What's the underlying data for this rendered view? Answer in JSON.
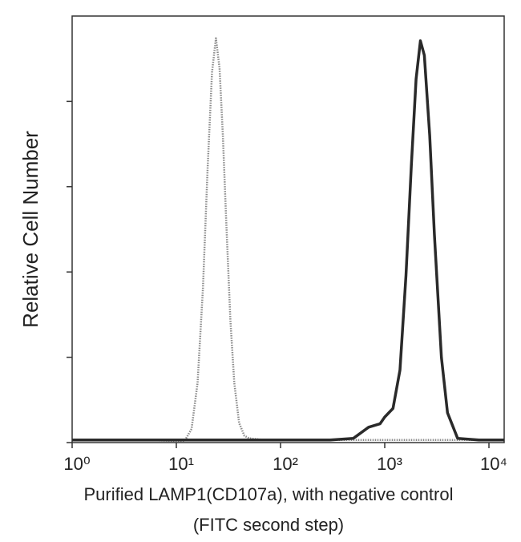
{
  "chart_data": {
    "type": "line",
    "ylabel": "Relative Cell Number",
    "xlabel": [
      "Purified LAMP1(CD107a), with negative control",
      "(FITC second step)"
    ],
    "xscale": "log",
    "xlim": [
      1,
      14000
    ],
    "xticks": [
      {
        "value": 1,
        "label": "10⁰"
      },
      {
        "value": 10,
        "label": "10¹"
      },
      {
        "value": 100,
        "label": "10²"
      },
      {
        "value": 1000,
        "label": "10³"
      },
      {
        "value": 10000,
        "label": "10⁴"
      }
    ],
    "ylim": [
      0,
      500
    ],
    "yticks": [
      0,
      100,
      200,
      300,
      400
    ],
    "series": [
      {
        "color": "#8a8a8a",
        "dashed": true,
        "x": [
          1,
          5,
          10,
          12,
          14,
          16,
          18,
          20,
          22,
          24,
          26,
          28,
          30,
          33,
          36,
          40,
          45,
          50,
          70,
          100,
          300,
          1000,
          14000
        ],
        "values": [
          3,
          3,
          2,
          2,
          16,
          70,
          181,
          323,
          434,
          474,
          439,
          359,
          265,
          144,
          70,
          23,
          8,
          5,
          3,
          3,
          3,
          3,
          3
        ]
      },
      {
        "color": "#2a2a2a",
        "dashed": false,
        "x": [
          1,
          10,
          100,
          300,
          500,
          700,
          900,
          1000,
          1200,
          1400,
          1600,
          1800,
          2000,
          2200,
          2400,
          2700,
          3000,
          3500,
          4000,
          5000,
          8000,
          14000
        ],
        "values": [
          3,
          3,
          3,
          3,
          5,
          18,
          22,
          30,
          40,
          85,
          196,
          325,
          426,
          471,
          454,
          360,
          243,
          100,
          35,
          5,
          3,
          3
        ]
      }
    ]
  }
}
